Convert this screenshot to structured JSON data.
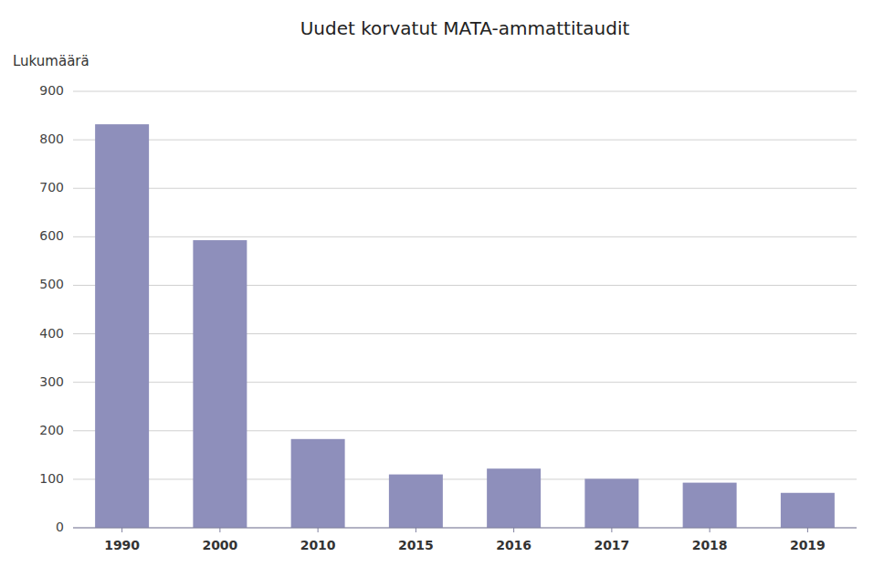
{
  "chart_data": {
    "type": "bar",
    "title": "Uudet korvatut MATA-ammattitaudit",
    "ylabel": "Lukumäärä",
    "categories": [
      "1990",
      "2000",
      "2010",
      "2015",
      "2016",
      "2017",
      "2018",
      "2019"
    ],
    "values": [
      832,
      593,
      183,
      110,
      122,
      101,
      93,
      72
    ],
    "color": "#8e8fbb",
    "ylim": [
      0,
      900
    ],
    "yticks": [
      0,
      100,
      200,
      300,
      400,
      500,
      600,
      700,
      800,
      900
    ],
    "grid": true
  }
}
